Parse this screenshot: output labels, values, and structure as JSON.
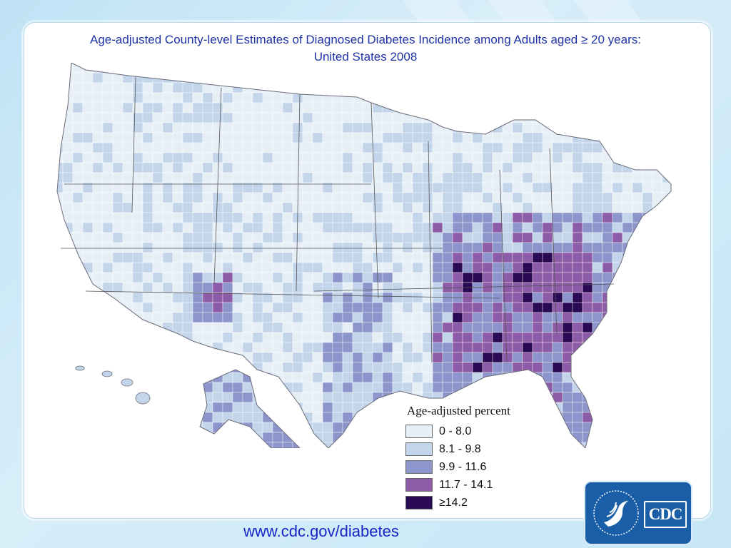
{
  "title": {
    "line1": "Age-adjusted County-level Estimates of Diagnosed Diabetes Incidence among Adults aged ≥ 20 years:",
    "line2": "United States 2008"
  },
  "legend": {
    "title": "Age-adjusted percent",
    "items": [
      {
        "label": "0 - 8.0",
        "color": "#e6eef6"
      },
      {
        "label": "8.1 - 9.8",
        "color": "#c2d5ea"
      },
      {
        "label": "9.9 - 11.6",
        "color": "#8c96cc"
      },
      {
        "label": "11.7 - 14.1",
        "color": "#8d5ba8"
      },
      {
        "label": "≥14.2",
        "color": "#2b0a55"
      }
    ]
  },
  "footer": {
    "url": "www.cdc.gov/diabetes"
  },
  "logo": {
    "text": "CDC",
    "icon": "hhs-eagle-seal-icon"
  },
  "colors": {
    "accent_title": "#1f33a6",
    "link": "#1525c8",
    "logo_bg": "#1a5ea8"
  }
}
